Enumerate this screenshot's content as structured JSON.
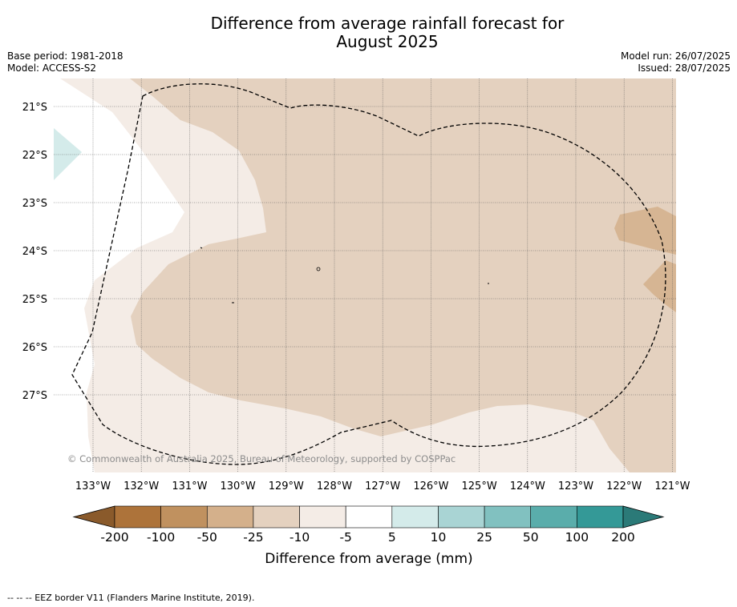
{
  "title_line1": "Difference from average rainfall forecast for",
  "title_line2": "August 2025",
  "meta_left": {
    "base_period": "Base period: 1981-2018",
    "model": "Model: ACCESS-S2"
  },
  "meta_right": {
    "model_run": "Model run: 26/07/2025",
    "issued": "Issued: 28/07/2025"
  },
  "map": {
    "lat_labels": [
      "21°S",
      "22°S",
      "23°S",
      "24°S",
      "25°S",
      "26°S",
      "27°S"
    ],
    "lon_labels": [
      "133°W",
      "132°W",
      "131°W",
      "130°W",
      "129°W",
      "128°W",
      "127°W",
      "126°W",
      "125°W",
      "124°W",
      "123°W",
      "122°W",
      "121°W"
    ],
    "copyright": "© Commonwealth of Australia 2025, Bureau of Meteorology, supported by COSPPac"
  },
  "colorbar": {
    "ticks": [
      "-200",
      "-100",
      "-50",
      "-25",
      "-10",
      "-5",
      "5",
      "10",
      "25",
      "50",
      "100",
      "200"
    ],
    "colors": [
      "#ad733a",
      "#c0915f",
      "#d4b08b",
      "#e4d1bf",
      "#f4ece6",
      "#ffffff",
      "#d4ebea",
      "#a9d4d4",
      "#81c1c0",
      "#5aadab",
      "#349997"
    ],
    "under_color": "#8a5a2b",
    "over_color": "#2b7a78",
    "label": "Difference from average (mm)"
  },
  "footer_text": "--  --  -- EEZ border V11 (Flanders Marine Institute, 2019)."
}
